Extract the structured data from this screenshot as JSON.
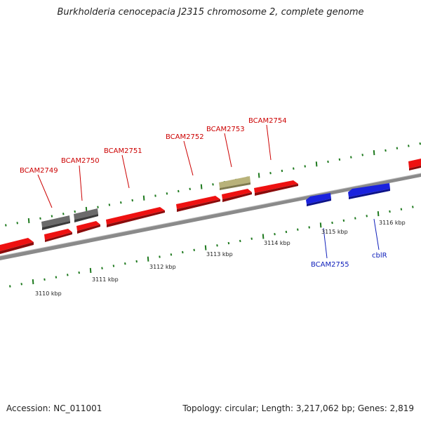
{
  "title": "Burkholderia cenocepacia J2315 chromosome 2, complete genome",
  "accession": "Accession: NC_011001",
  "stats": "Topology: circular; Length: 3,217,062 bp; Genes: 2,819",
  "colors": {
    "forward_gene": "#ee1111",
    "reverse_gene": "#1a22dd",
    "pseudo_gray": "#666666",
    "tan_feature": "#b8b27a",
    "backbone": "#888888",
    "tick": "#1f7a1f",
    "forward_label": "#cc0000",
    "reverse_label": "#1020bb"
  },
  "scale_labels": [
    "3110 kbp",
    "3111 kbp",
    "3112 kbp",
    "3113 kbp",
    "3114 kbp",
    "3115 kbp",
    "3116 kbp"
  ],
  "gene_labels": {
    "forward": [
      "BCAM2749",
      "BCAM2750",
      "BCAM2751",
      "BCAM2752",
      "BCAM2753",
      "BCAM2754"
    ],
    "reverse": [
      "BCAM2755",
      "cblR"
    ]
  }
}
